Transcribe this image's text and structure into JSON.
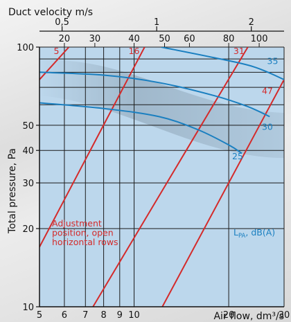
{
  "chart_data": {
    "type": "line",
    "x_axis": {
      "label": "Air flow, dm³/s",
      "scale": "log",
      "range": [
        5,
        30
      ],
      "ticks": [
        5,
        6,
        7,
        8,
        9,
        10,
        20,
        30
      ],
      "tick_labels": [
        "5",
        "6",
        "7",
        "8",
        "9",
        "10",
        "20",
        "30"
      ]
    },
    "y_axis": {
      "label": "Total pressure, Pa",
      "scale": "log",
      "range": [
        10,
        100
      ],
      "ticks": [
        10,
        20,
        30,
        40,
        50,
        100
      ],
      "tick_labels": [
        "10",
        "20",
        "30",
        "40",
        "50",
        "100"
      ]
    },
    "top_axes": {
      "velocity": {
        "label": "Duct velocity m/s",
        "ticks": [
          {
            "x": 5.9,
            "label": "0,5"
          },
          {
            "x": 11.8,
            "label": "1"
          },
          {
            "x": 23.6,
            "label": "2"
          }
        ]
      },
      "adjustment": {
        "ticks": [
          {
            "x": 6.0,
            "label": "20"
          },
          {
            "x": 7.5,
            "label": "30"
          },
          {
            "x": 10.0,
            "label": "40"
          },
          {
            "x": 12.5,
            "label": "50"
          },
          {
            "x": 15.0,
            "label": "60"
          },
          {
            "x": 20.0,
            "label": "80"
          },
          {
            "x": 25.0,
            "label": "100"
          }
        ]
      }
    },
    "adjustment_lines": [
      {
        "label": "5",
        "points": [
          [
            5,
            75
          ],
          [
            6.2,
            100
          ]
        ]
      },
      {
        "label": "16",
        "points": [
          [
            5,
            17
          ],
          [
            10.8,
            100
          ]
        ]
      },
      {
        "label": "31",
        "points": [
          [
            7.4,
            10
          ],
          [
            23,
            100
          ]
        ]
      },
      {
        "label": "47",
        "points": [
          [
            12.3,
            10
          ],
          [
            30,
            75
          ]
        ]
      }
    ],
    "sound_curves": [
      {
        "label": "35",
        "points": [
          [
            12.2,
            100
          ],
          [
            18,
            91
          ],
          [
            24,
            84
          ],
          [
            30,
            75
          ]
        ]
      },
      {
        "label": "30",
        "points": [
          [
            5,
            80
          ],
          [
            8,
            78
          ],
          [
            12,
            73
          ],
          [
            18,
            65
          ],
          [
            23,
            59
          ],
          [
            27,
            54
          ]
        ]
      },
      {
        "label": "25",
        "points": [
          [
            5,
            61
          ],
          [
            8,
            58
          ],
          [
            12,
            54
          ],
          [
            16,
            48
          ],
          [
            20,
            42
          ],
          [
            22,
            39
          ]
        ]
      }
    ],
    "annotations": {
      "adjustment_note": [
        "Adjustment",
        "position, open",
        "horizontal rows"
      ],
      "sound_unit_main": "L",
      "sound_unit_sub": "PA",
      "sound_unit_rest": ", dB(A)"
    },
    "colors": {
      "plot_background": "#bcd7ec",
      "grid": "#1a1a1a",
      "adjustment_lines": "#d42a2a",
      "sound_curves": "#1a7fc0"
    },
    "grid": true
  }
}
